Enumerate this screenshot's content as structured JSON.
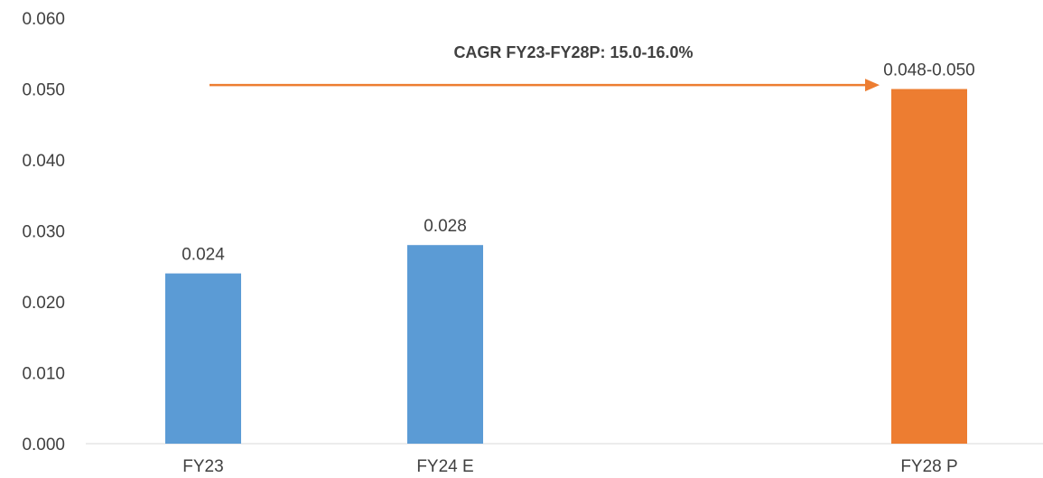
{
  "chart_data": {
    "type": "bar",
    "categories": [
      "FY23",
      "FY24 E",
      "FY28 P"
    ],
    "values": [
      0.024,
      0.028,
      0.05
    ],
    "data_labels": [
      "0.024",
      "0.028",
      "0.048-0.050"
    ],
    "colors": [
      "#5B9BD5",
      "#5B9BD5",
      "#ED7D31"
    ],
    "ylim": [
      0,
      0.06
    ],
    "yticks": [
      0.0,
      0.01,
      0.02,
      0.03,
      0.04,
      0.05,
      0.06
    ],
    "ytick_labels": [
      "0.000",
      "0.010",
      "0.020",
      "0.030",
      "0.040",
      "0.050",
      "0.060"
    ],
    "annotation": {
      "text": "CAGR FY23-FY28P: 15.0-16.0%",
      "arrow_color": "#ED7D31",
      "arrow_y_value": 0.0505
    },
    "grid": false,
    "legend": "none"
  }
}
